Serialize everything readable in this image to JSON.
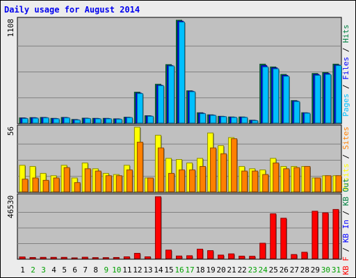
{
  "chart_data": {
    "type": "bar",
    "title": "Daily usage for August 2014",
    "days": [
      "1",
      "2",
      "3",
      "4",
      "5",
      "6",
      "7",
      "8",
      "9",
      "10",
      "11",
      "12",
      "13",
      "14",
      "15",
      "16",
      "17",
      "18",
      "19",
      "20",
      "21",
      "22",
      "23",
      "24",
      "25",
      "26",
      "27",
      "28",
      "29",
      "30",
      "31"
    ],
    "weekend_days": [
      "2",
      "3",
      "9",
      "10",
      "16",
      "17",
      "23",
      "24",
      "30",
      "31"
    ],
    "panels": [
      {
        "id": "requests",
        "max_label": "1108",
        "ymax": 1108,
        "right_label": [
          {
            "text": "Pages",
            "color": "#00c0ff"
          },
          {
            "text": " / ",
            "color": "#000000"
          },
          {
            "text": "Files",
            "color": "#0000ff"
          },
          {
            "text": " / ",
            "color": "#000000"
          },
          {
            "text": "Hits",
            "color": "#008040"
          }
        ],
        "series": [
          {
            "name": "Hits",
            "color": "#008040",
            "values": [
              55,
              58,
              60,
              50,
              60,
              38,
              52,
              50,
              50,
              45,
              62,
              330,
              78,
              415,
              625,
              1100,
              345,
              110,
              88,
              72,
              65,
              65,
              30,
              630,
              600,
              520,
              240,
              110,
              530,
              540,
              630
            ]
          },
          {
            "name": "Files",
            "color": "#0000ff",
            "values": [
              52,
              56,
              58,
              48,
              58,
              35,
              50,
              48,
              48,
              43,
              60,
              320,
              75,
              405,
              615,
              1090,
              340,
              105,
              85,
              70,
              62,
              62,
              28,
              615,
              590,
              510,
              235,
              108,
              520,
              530,
              620
            ]
          },
          {
            "name": "Pages",
            "color": "#00c0ff",
            "values": [
              48,
              52,
              55,
              45,
              55,
              32,
              48,
              45,
              45,
              40,
              58,
              315,
              72,
              400,
              610,
              1080,
              335,
              100,
              82,
              68,
              60,
              60,
              25,
              600,
              580,
              500,
              230,
              105,
              510,
              520,
              615
            ]
          }
        ]
      },
      {
        "id": "visits",
        "max_label": "56",
        "ymax": 56,
        "right_label": [
          {
            "text": "Visits",
            "color": "#ffff00"
          },
          {
            "text": " / ",
            "color": "#000000"
          },
          {
            "text": "Sites",
            "color": "#ff8000"
          }
        ],
        "series": [
          {
            "name": "Visits",
            "color": "#ffff00",
            "values": [
              23,
              22,
              16,
              14,
              23,
              12,
              25,
              20,
              16,
              15,
              23,
              56,
              12,
              49,
              29,
              28,
              25,
              29,
              51,
              40,
              47,
              22,
              20,
              19,
              29,
              22,
              22,
              22,
              12,
              14,
              14
            ]
          },
          {
            "name": "Sites",
            "color": "#ff8000",
            "values": [
              11,
              12,
              10,
              12,
              21,
              8,
              20,
              18,
              14,
              14,
              19,
              43,
              12,
              38,
              16,
              19,
              19,
              22,
              38,
              33,
              46,
              18,
              18,
              15,
              25,
              20,
              21,
              22,
              12,
              14,
              14
            ]
          }
        ]
      },
      {
        "id": "traffic",
        "max_label": "46530",
        "ymax": 46530,
        "right_label": [
          {
            "text": "KB F",
            "color": "#ff0000"
          },
          {
            "text": " / ",
            "color": "#000000"
          },
          {
            "text": "KB In",
            "color": "#0000ff"
          },
          {
            "text": " / ",
            "color": "#000000"
          },
          {
            "text": "KB Out",
            "color": "#008040"
          }
        ],
        "series": [
          {
            "name": "KB F",
            "color": "#ff0000",
            "values": [
              1200,
              800,
              900,
              900,
              900,
              500,
              1000,
              700,
              700,
              800,
              1300,
              3900,
              1300,
              46000,
              6300,
              1900,
              2100,
              7000,
              5900,
              2600,
              3500,
              1800,
              1700,
              11400,
              33300,
              30000,
              3000,
              4700,
              35200,
              34000,
              36500
            ]
          }
        ]
      }
    ]
  }
}
